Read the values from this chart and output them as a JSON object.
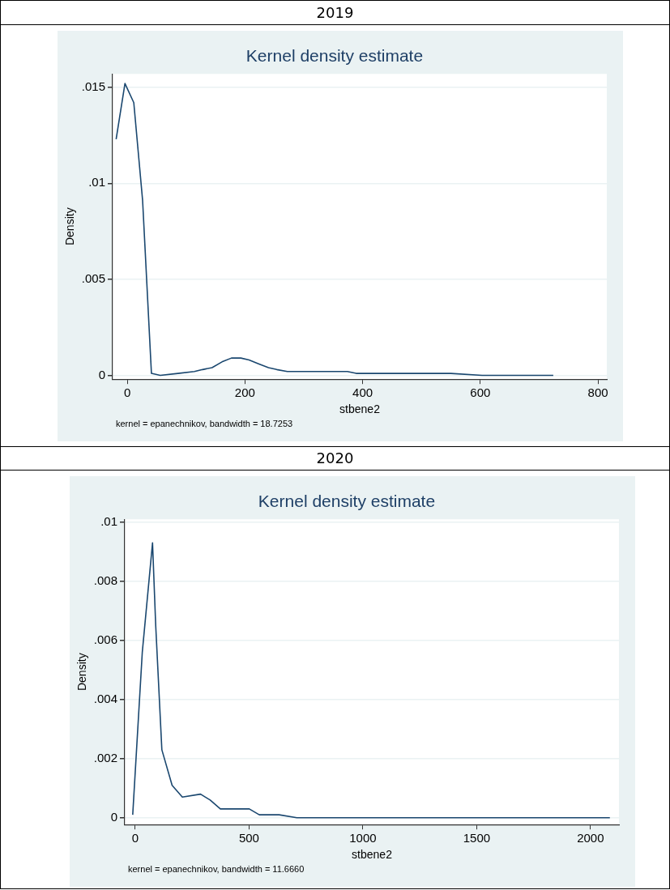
{
  "chart_data": [
    {
      "type": "line",
      "title": "Kernel density estimate",
      "subtitle": "2019",
      "xlabel": "stbene2",
      "ylabel": "Density",
      "annotations": [
        "kernel = epanechnikov, bandwidth = 18.7253"
      ],
      "color": "#1a476f",
      "marker": "none",
      "grid": "y",
      "x": [
        -19,
        -4,
        11,
        26,
        41,
        56,
        86,
        114,
        128,
        144,
        161,
        177,
        193,
        207,
        223,
        240,
        254,
        272,
        300,
        328,
        361,
        374,
        389,
        412,
        477,
        550,
        603,
        724
      ],
      "values": [
        0.0123,
        0.0152,
        0.0142,
        0.0091,
        0.0001,
        0,
        0.0001,
        0.0002,
        0.0003,
        0.0004,
        0.0007,
        0.0009,
        0.0009,
        0.0008,
        0.0006,
        0.0004,
        0.0003,
        0.0002,
        0.0002,
        0.0002,
        0.0002,
        0.0002,
        0.0001,
        0.0001,
        0.0001,
        0.0001,
        0,
        0
      ],
      "xlim": [
        -25,
        815
      ],
      "ylim": [
        -0.0002,
        0.0157
      ],
      "xticks": [
        0,
        200,
        400,
        600,
        800
      ],
      "yticks": [
        0,
        {
          "value": 0.005,
          "label": ".005"
        },
        {
          "value": 0.01,
          "label": ".01"
        },
        {
          "value": 0.015,
          "label": ".015"
        }
      ]
    },
    {
      "type": "line",
      "title": "Kernel density estimate",
      "subtitle": "2020",
      "xlabel": "stbene2",
      "ylabel": "Density",
      "annotations": [
        "kernel = epanechnikov, bandwidth = 11.6660"
      ],
      "color": "#1a476f",
      "marker": "none",
      "grid": "y",
      "x": [
        -11,
        31,
        76,
        90,
        117,
        162,
        207,
        287,
        329,
        374,
        412,
        501,
        545,
        588,
        632,
        710,
        793,
        2085
      ],
      "values": [
        0.0001,
        0.0056,
        0.0093,
        0.0065,
        0.0023,
        0.0011,
        0.0007,
        0.0008,
        0.0006,
        0.0003,
        0.0003,
        0.0003,
        0.0001,
        0.0001,
        0.0001,
        0,
        0,
        0
      ],
      "xlim": [
        -46,
        2125
      ],
      "ylim": [
        -0.00023,
        0.0101
      ],
      "xticks": [
        0,
        500,
        1000,
        1500,
        2000
      ],
      "yticks": [
        0,
        {
          "value": 0.002,
          "label": ".002"
        },
        {
          "value": 0.004,
          "label": ".004"
        },
        {
          "value": 0.006,
          "label": ".006"
        },
        {
          "value": 0.008,
          "label": ".008"
        },
        {
          "value": 0.01,
          "label": ".01"
        }
      ]
    }
  ]
}
